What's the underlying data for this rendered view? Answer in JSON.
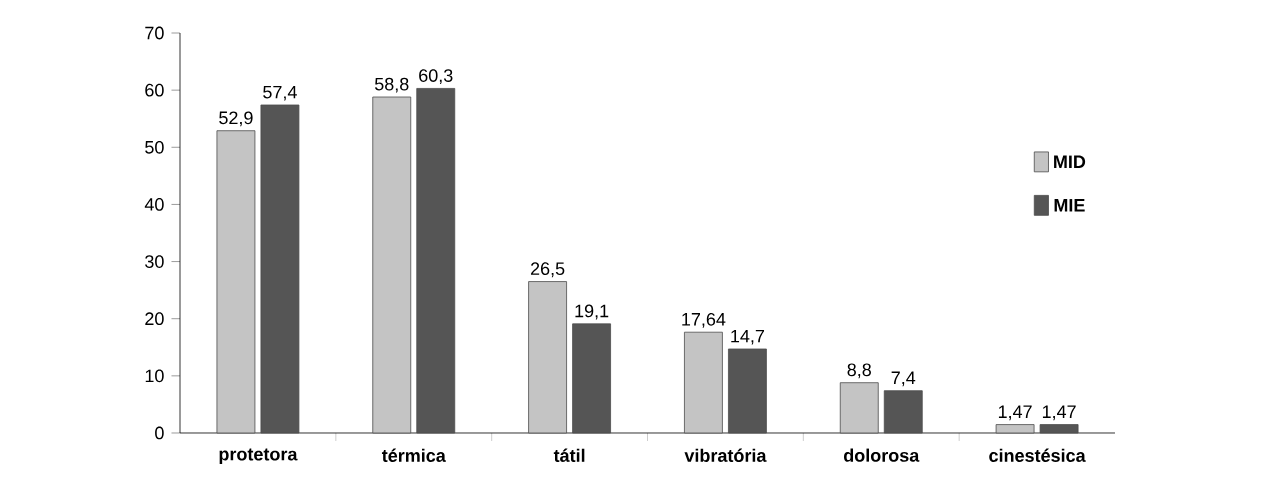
{
  "chart_data": {
    "type": "bar",
    "categories": [
      "protetora",
      "térmica",
      "tátil",
      "vibratória",
      "dolorosa",
      "cinestésica"
    ],
    "series": [
      {
        "name": "MID",
        "color": "#c4c4c4",
        "values": [
          52.9,
          58.8,
          26.5,
          17.64,
          8.8,
          1.47
        ],
        "value_labels": [
          "52,9",
          "58,8",
          "26,5",
          "17,64",
          "8,8",
          "1,47"
        ]
      },
      {
        "name": "MIE",
        "color": "#555555",
        "values": [
          57.4,
          60.3,
          19.1,
          14.7,
          7.4,
          1.47
        ],
        "value_labels": [
          "57,4",
          "60,3",
          "19,1",
          "14,7",
          "7,4",
          "1,47"
        ]
      }
    ],
    "ylim": [
      0,
      70
    ],
    "yticks": [
      0,
      10,
      20,
      30,
      40,
      50,
      60,
      70
    ],
    "legend": "right"
  }
}
